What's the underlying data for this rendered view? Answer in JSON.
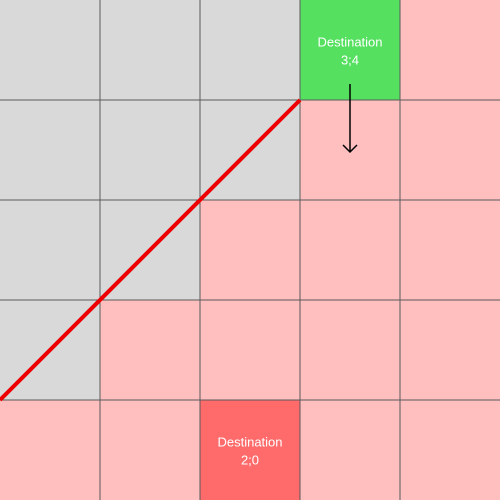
{
  "cells": [
    {
      "label": "Destination",
      "coord": "3;4"
    },
    {
      "label": "Destination",
      "coord": "2;0"
    }
  ]
}
